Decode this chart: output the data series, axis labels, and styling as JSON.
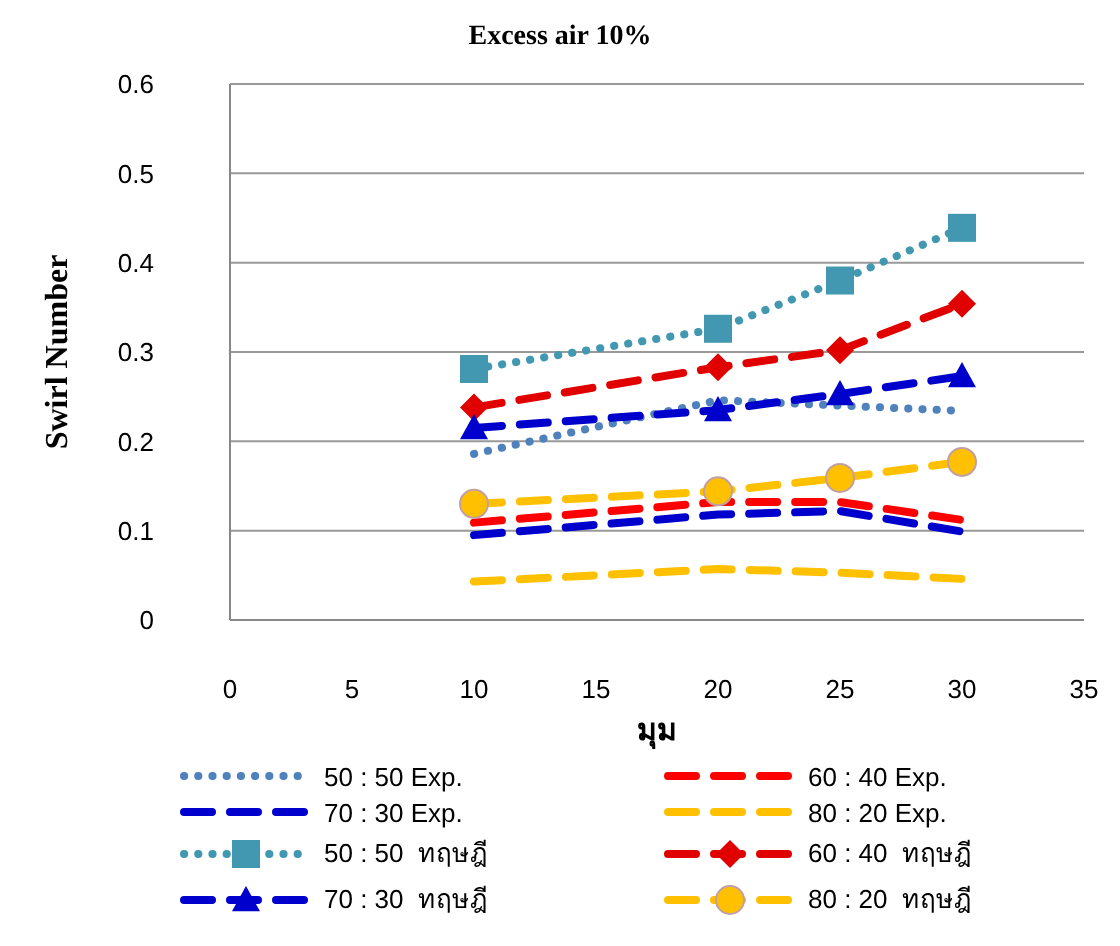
{
  "chart_data": {
    "type": "line",
    "title": "Excess air 10%",
    "xlabel": "มุม",
    "ylabel": "Swirl Number",
    "x": [
      10,
      20,
      25,
      30
    ],
    "xlim": [
      0,
      35
    ],
    "xticks": [
      0,
      5,
      10,
      15,
      20,
      25,
      30,
      35
    ],
    "ylim": [
      0,
      0.6
    ],
    "yticks": [
      0,
      0.1,
      0.2,
      0.3,
      0.4,
      0.5,
      0.6
    ],
    "grid": "y",
    "legend": "bottom",
    "series": [
      {
        "name": "50 : 50 Exp.",
        "color": "#4f81bd",
        "line_style": "dotted",
        "marker": "none",
        "values": [
          0.186,
          0.246,
          0.24,
          0.234
        ]
      },
      {
        "name": "60 : 40 Exp.",
        "color": "#ff0000",
        "line_style": "dashed",
        "marker": "none",
        "values": [
          0.109,
          0.132,
          0.132,
          0.112
        ]
      },
      {
        "name": "70 : 30 Exp.",
        "color": "#0000cc",
        "line_style": "dashed",
        "marker": "none",
        "values": [
          0.095,
          0.118,
          0.122,
          0.099
        ]
      },
      {
        "name": "80 : 20 Exp.",
        "color": "#ffc000",
        "line_style": "dashed",
        "marker": "none",
        "values": [
          0.043,
          0.057,
          0.053,
          0.046
        ]
      },
      {
        "name": "50 : 50  ทฤษฎี",
        "color": "#4198b0",
        "line_style": "dotted",
        "marker": "square",
        "values": [
          0.281,
          0.326,
          0.38,
          0.439
        ]
      },
      {
        "name": "60 : 40  ทฤษฎี",
        "color": "#e00000",
        "line_style": "dashed",
        "marker": "diamond",
        "values": [
          0.238,
          0.283,
          0.302,
          0.354
        ]
      },
      {
        "name": "70 : 30  ทฤษฎี",
        "color": "#0000cc",
        "line_style": "dashed",
        "marker": "triangle",
        "values": [
          0.215,
          0.235,
          0.253,
          0.273
        ]
      },
      {
        "name": "80 : 20  ทฤษฎี",
        "color": "#ffc000",
        "line_style": "dashed",
        "marker": "circle",
        "values": [
          0.13,
          0.144,
          0.159,
          0.177
        ]
      }
    ]
  }
}
